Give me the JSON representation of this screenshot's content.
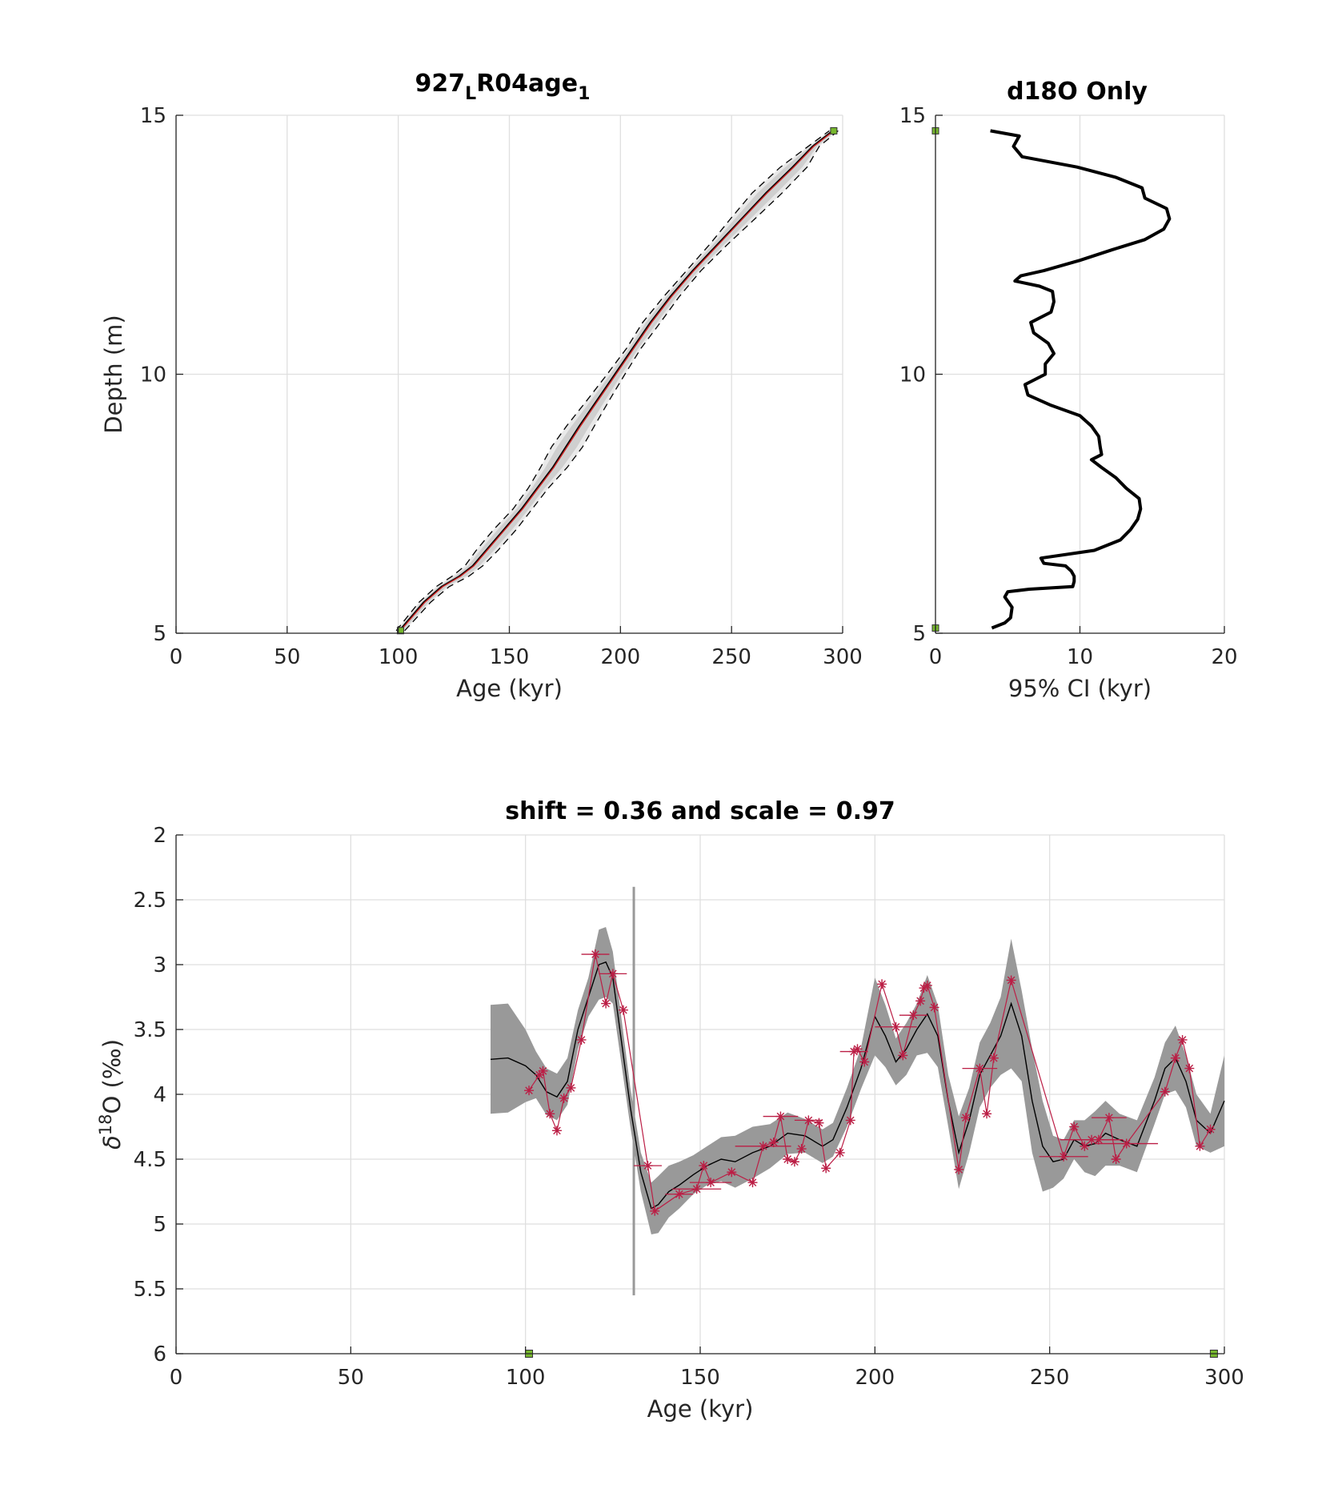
{
  "figure": {
    "panel1": {
      "title_main": "927",
      "title_sub1": "L",
      "title_mid": "R04age",
      "title_sub2": "1"
    },
    "panel2": {
      "title": "d18O Only"
    },
    "panel3": {
      "title": "shift = 0.36 and scale = 0.97"
    }
  },
  "chart_data": [
    {
      "type": "line",
      "title": "927_LR04age_1",
      "xlabel": "Age (kyr)",
      "ylabel": "Depth (m)",
      "xlim": [
        0,
        300
      ],
      "ylim": [
        5,
        15
      ],
      "y_reversed": false,
      "xticks": [
        "0",
        "50",
        "100",
        "150",
        "200",
        "250",
        "300"
      ],
      "yticks": [
        "5",
        "10",
        "15"
      ],
      "grid": true,
      "series": [
        {
          "color": "#cc2222",
          "depth": [
            5.05,
            5.3,
            5.6,
            5.9,
            6.1,
            6.3,
            6.6,
            7.0,
            7.4,
            7.8,
            8.2,
            8.6,
            9.0,
            9.5,
            10.0,
            10.5,
            11.0,
            11.5,
            12.0,
            12.5,
            13.0,
            13.5,
            14.0,
            14.4,
            14.7
          ],
          "age": [
            101,
            106,
            112,
            120,
            128,
            134,
            140,
            148,
            156,
            163,
            170,
            176,
            182,
            190,
            198,
            206,
            214,
            223,
            233,
            244,
            255,
            266,
            278,
            287,
            296
          ]
        }
      ],
      "ci_band_kyr": [
        3.8,
        4.5,
        5.2,
        5.8,
        7.5,
        8.0,
        9.8,
        10.2,
        8.6,
        9.0,
        12.0,
        14.0,
        12.5,
        10.0,
        8.0,
        6.5,
        8.0,
        7.0,
        6.5,
        8.0,
        11.0,
        13.5,
        12.0,
        5.0,
        4.0
      ],
      "tie_points": [
        {
          "age": 101,
          "depth": 5.05
        },
        {
          "age": 296,
          "depth": 14.7
        }
      ],
      "line_colors": {
        "mean": "#cc2222",
        "median": "#000000",
        "ci": "#000000",
        "ensemble": "#bdbdbd"
      }
    },
    {
      "type": "line",
      "title": "d18O Only",
      "xlabel": "95% CI (kyr)",
      "ylabel": "",
      "xlim": [
        0,
        20
      ],
      "ylim": [
        5,
        15
      ],
      "xticks": [
        "0",
        "10",
        "20"
      ],
      "yticks": [
        "5",
        "10",
        "15"
      ],
      "grid": true,
      "series": [
        {
          "color": "#000000",
          "depth": [
            5.1,
            5.2,
            5.3,
            5.5,
            5.7,
            5.8,
            5.85,
            5.9,
            6.0,
            6.1,
            6.2,
            6.3,
            6.35,
            6.45,
            6.6,
            6.8,
            7.0,
            7.2,
            7.4,
            7.6,
            7.8,
            8.0,
            8.2,
            8.35,
            8.45,
            8.6,
            8.8,
            9.0,
            9.2,
            9.4,
            9.6,
            9.8,
            10.0,
            10.2,
            10.4,
            10.6,
            10.8,
            11.0,
            11.2,
            11.4,
            11.6,
            11.7,
            11.8,
            11.9,
            12.0,
            12.2,
            12.4,
            12.6,
            12.8,
            13.0,
            13.2,
            13.4,
            13.6,
            13.8,
            14.0,
            14.2,
            14.4,
            14.6,
            14.7
          ],
          "ci": [
            3.9,
            4.8,
            5.2,
            5.3,
            4.8,
            5.0,
            6.5,
            9.5,
            9.6,
            9.6,
            9.4,
            9.0,
            7.5,
            7.3,
            11.0,
            12.8,
            13.5,
            14.0,
            14.2,
            14.1,
            13.2,
            12.5,
            11.5,
            10.8,
            11.5,
            11.4,
            11.3,
            10.8,
            10.0,
            8.0,
            6.4,
            6.2,
            7.6,
            7.6,
            8.2,
            7.8,
            6.8,
            6.6,
            8.0,
            8.2,
            8.1,
            7.2,
            5.5,
            5.9,
            7.5,
            10.0,
            12.2,
            14.5,
            15.8,
            16.2,
            16.0,
            14.5,
            14.3,
            12.5,
            9.8,
            6.0,
            5.4,
            5.8,
            3.8
          ]
        }
      ],
      "tie_points": [
        {
          "ci": 0,
          "depth": 5.1
        },
        {
          "ci": 0,
          "depth": 14.7
        }
      ]
    },
    {
      "type": "line",
      "title": "shift = 0.36 and scale = 0.97",
      "xlabel": "Age (kyr)",
      "ylabel_main": "δ",
      "ylabel_sup": "18",
      "ylabel_rest": "O (‰)",
      "xlim": [
        0,
        300
      ],
      "ylim": [
        2,
        6
      ],
      "y_reversed": true,
      "xticks": [
        "0",
        "50",
        "100",
        "150",
        "200",
        "250",
        "300"
      ],
      "yticks": [
        "2",
        "2.5",
        "3",
        "3.5",
        "4",
        "4.5",
        "5",
        "5.5",
        "6"
      ],
      "grid": true,
      "stack_mean": {
        "color": "#000000",
        "age": [
          90,
          95,
          100,
          103,
          106,
          109,
          112,
          115,
          118,
          121,
          123,
          125,
          127,
          130,
          133,
          136,
          138,
          141,
          144,
          148,
          152,
          156,
          160,
          165,
          170,
          175,
          180,
          185,
          188,
          192,
          196,
          200,
          203,
          206,
          209,
          212,
          215,
          218,
          221,
          224,
          227,
          230,
          233,
          236,
          239,
          242,
          245,
          248,
          251,
          254,
          257,
          260,
          263,
          266,
          270,
          275,
          280,
          283,
          286,
          289,
          292,
          296,
          300
        ],
        "d18o": [
          3.73,
          3.72,
          3.78,
          3.85,
          3.98,
          4.02,
          3.9,
          3.5,
          3.25,
          3.0,
          2.98,
          3.1,
          3.5,
          4.1,
          4.6,
          4.88,
          4.85,
          4.75,
          4.7,
          4.62,
          4.55,
          4.5,
          4.52,
          4.45,
          4.4,
          4.3,
          4.32,
          4.4,
          4.35,
          4.1,
          3.8,
          3.4,
          3.55,
          3.75,
          3.65,
          3.5,
          3.38,
          3.55,
          4.05,
          4.45,
          4.2,
          3.85,
          3.7,
          3.55,
          3.3,
          3.55,
          4.05,
          4.4,
          4.52,
          4.5,
          4.35,
          4.4,
          4.38,
          4.3,
          4.35,
          4.4,
          4.05,
          3.8,
          3.72,
          3.9,
          4.2,
          4.3,
          4.05
        ],
        "band_half_width": [
          0.42,
          0.42,
          0.28,
          0.18,
          0.18,
          0.18,
          0.18,
          0.15,
          0.15,
          0.27,
          0.27,
          0.2,
          0.18,
          0.15,
          0.15,
          0.2,
          0.22,
          0.2,
          0.18,
          0.15,
          0.15,
          0.17,
          0.2,
          0.2,
          0.17,
          0.16,
          0.13,
          0.13,
          0.13,
          0.15,
          0.16,
          0.3,
          0.24,
          0.18,
          0.2,
          0.2,
          0.3,
          0.24,
          0.2,
          0.28,
          0.25,
          0.25,
          0.25,
          0.3,
          0.5,
          0.35,
          0.4,
          0.35,
          0.2,
          0.15,
          0.15,
          0.2,
          0.25,
          0.25,
          0.2,
          0.2,
          0.18,
          0.2,
          0.25,
          0.2,
          0.2,
          0.15,
          0.35
        ]
      },
      "observations": {
        "color": "#bb1e45",
        "age": [
          101,
          104,
          105,
          107,
          109,
          111,
          113,
          116,
          120,
          123,
          125,
          128,
          135,
          137,
          144,
          149,
          151,
          153,
          159,
          165,
          168,
          171,
          173,
          175,
          177,
          179,
          181,
          184,
          186,
          190,
          193,
          194,
          195,
          197,
          202,
          206,
          208,
          211,
          213,
          214,
          215,
          217,
          224,
          226,
          230,
          232,
          234,
          239,
          254,
          257,
          260,
          262,
          264,
          267,
          269,
          272,
          283,
          286,
          288,
          290,
          293,
          296
        ],
        "d18o": [
          3.97,
          3.85,
          3.82,
          4.15,
          4.28,
          4.03,
          3.95,
          3.58,
          2.92,
          3.3,
          3.07,
          3.35,
          4.55,
          4.9,
          4.77,
          4.73,
          4.55,
          4.68,
          4.6,
          4.68,
          4.4,
          4.37,
          4.17,
          4.5,
          4.52,
          4.42,
          4.2,
          4.22,
          4.57,
          4.45,
          4.2,
          3.67,
          3.65,
          3.75,
          3.15,
          3.48,
          3.7,
          3.39,
          3.28,
          3.18,
          3.16,
          3.33,
          4.58,
          4.18,
          3.8,
          4.15,
          3.72,
          3.12,
          4.48,
          4.25,
          4.4,
          4.35,
          4.35,
          4.18,
          4.5,
          4.38,
          3.98,
          3.72,
          3.58,
          3.8,
          4.4,
          4.27
        ],
        "age_err": [
          0,
          0,
          0,
          0,
          0,
          0,
          0,
          0,
          4,
          0,
          4,
          0,
          4,
          0,
          4,
          7,
          0,
          6,
          0,
          0,
          8,
          0,
          5,
          0,
          0,
          0,
          4,
          0,
          0,
          0,
          0,
          4,
          0,
          0,
          0,
          6,
          0,
          4,
          0,
          0,
          0,
          0,
          0,
          0,
          5,
          0,
          0,
          0,
          7,
          0,
          0,
          9,
          6,
          5,
          0,
          9,
          0,
          0,
          0,
          0,
          0,
          0
        ]
      },
      "tie_points": [
        {
          "age": 101,
          "d18o": 6.0
        },
        {
          "age": 297,
          "d18o": 6.0
        }
      ],
      "band_color": "#999999",
      "spike": {
        "age": 131,
        "d18o_min": 2.4,
        "d18o_max": 5.55
      }
    }
  ]
}
